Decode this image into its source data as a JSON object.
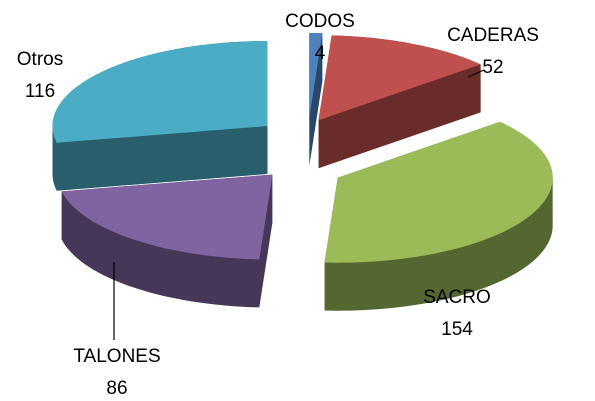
{
  "chart_data": {
    "type": "pie",
    "categories": [
      "CODOS",
      "CADERAS",
      "SACRO",
      "TALONES",
      "Otros"
    ],
    "values": [
      4,
      52,
      154,
      86,
      116
    ],
    "colors": [
      "#4f81bd",
      "#c0504d",
      "#9bbb59",
      "#8064a2",
      "#4bacc6"
    ]
  }
}
